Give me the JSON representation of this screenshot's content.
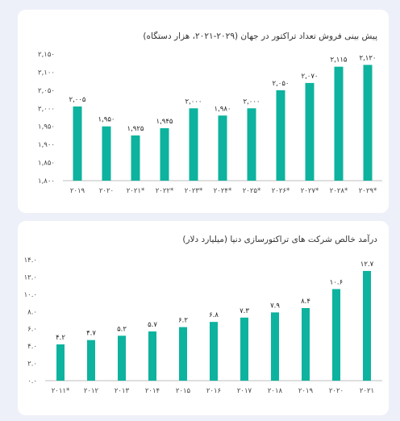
{
  "chart_data": [
    {
      "type": "bar",
      "title": "پیش بینی فروش تعداد تراکتور در جهان (۲۰۲۹-۲۰۲۱، هزار دستگاه)",
      "categories": [
        "۲۰۱۹",
        "۲۰۲۰",
        "۲۰۲۱*",
        "۲۰۲۲*",
        "۲۰۲۳*",
        "۲۰۲۴*",
        "۲۰۲۵*",
        "۲۰۲۶*",
        "۲۰۲۷*",
        "۲۰۲۸*",
        "۲۰۲۹*"
      ],
      "values": [
        2005,
        1950,
        1925,
        1945,
        2000,
        1980,
        2000,
        2050,
        2070,
        2115,
        2120
      ],
      "value_labels": [
        "۲,۰۰۵",
        "۱,۹۵۰",
        "۱,۹۲۵",
        "۱,۹۴۵",
        "۲,۰۰۰",
        "۱,۹۸۰",
        "۲,۰۰۰",
        "۲,۰۵۰",
        "۲,۰۷۰",
        "۲,۱۱۵",
        "۲,۱۲۰"
      ],
      "ylim": [
        1800,
        2150
      ],
      "yticks": [
        1800,
        1850,
        1900,
        1950,
        2000,
        2050,
        2100,
        2150
      ],
      "ytick_labels": [
        "۱,۸۰۰",
        "۱,۸۵۰",
        "۱,۹۰۰",
        "۱,۹۵۰",
        "۲,۰۰۰",
        "۲,۰۵۰",
        "۲,۱۰۰",
        "۲,۱۵۰"
      ],
      "grid": false,
      "color": "#0db39e"
    },
    {
      "type": "bar",
      "title": "درآمد خالص شرکت های تراکتورسازی دنیا (میلیارد دلار)",
      "categories": [
        "۲۰۱۱*",
        "۲۰۱۲",
        "۲۰۱۳",
        "۲۰۱۴",
        "۲۰۱۵",
        "۲۰۱۶",
        "۲۰۱۷",
        "۲۰۱۸",
        "۲۰۱۹",
        "۲۰۲۰",
        "۲۰۲۱"
      ],
      "values": [
        4.2,
        4.7,
        5.2,
        5.7,
        6.2,
        6.8,
        7.3,
        7.9,
        8.4,
        10.6,
        12.7
      ],
      "value_labels": [
        "۴.۲",
        "۴.۷",
        "۵.۲",
        "۵.۷",
        "۶.۲",
        "۶.۸",
        "۷.۳",
        "۷.۹",
        "۸.۴",
        "۱۰.۶",
        "۱۲.۷"
      ],
      "ylim": [
        0,
        14
      ],
      "yticks": [
        0,
        2,
        4,
        6,
        8,
        10,
        12,
        14
      ],
      "ytick_labels": [
        "۰.۰",
        "۲.۰",
        "۴.۰",
        "۶.۰",
        "۸.۰",
        "۱۰.۰",
        "۱۲.۰",
        "۱۴.۰"
      ],
      "grid": false,
      "color": "#0db39e"
    }
  ]
}
